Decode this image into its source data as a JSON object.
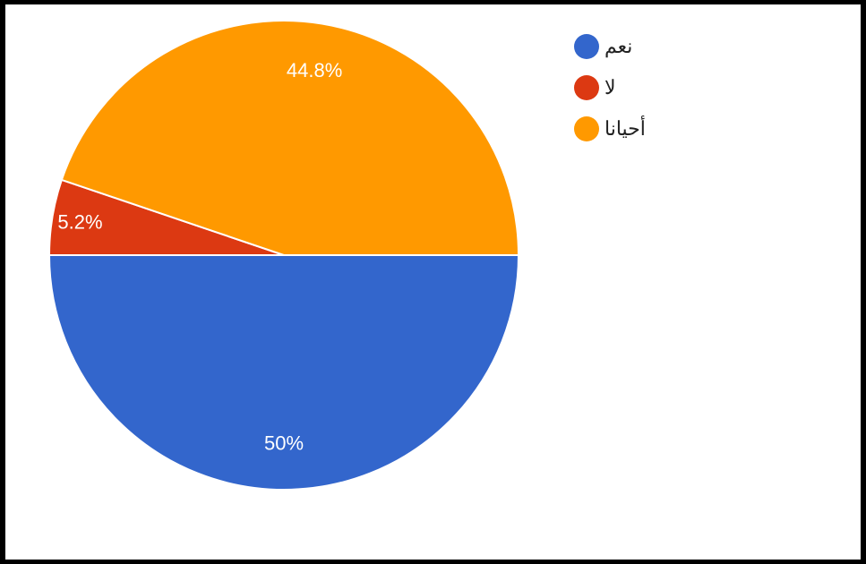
{
  "chart_data": {
    "type": "pie",
    "title": "",
    "legend_position": "right",
    "slices": [
      {
        "label": "نعم",
        "value": 50,
        "display": "50%",
        "color": "#3366cc"
      },
      {
        "label": "لا",
        "value": 5.2,
        "display": "5.2%",
        "color": "#dc3912"
      },
      {
        "label": "أحيانا",
        "value": 44.8,
        "display": "44.8%",
        "color": "#ff9900"
      }
    ]
  }
}
